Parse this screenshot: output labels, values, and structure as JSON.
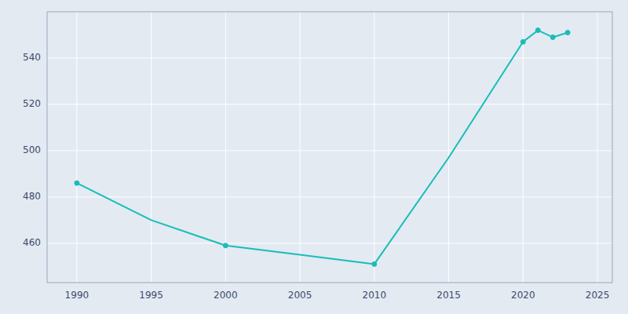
{
  "chart_data": {
    "type": "line",
    "x": [
      1990,
      1995,
      2000,
      2005,
      2010,
      2015,
      2020,
      2021,
      2022,
      2023
    ],
    "series": [
      {
        "color": "#18BDB8",
        "marker": "none",
        "line_style": "solid",
        "values": [
          486,
          470,
          459,
          455,
          451,
          497,
          547,
          552,
          549,
          551
        ]
      },
      {
        "color": "#18BDB8",
        "marker": "circle",
        "line_style": "none",
        "values": [
          486,
          null,
          459,
          null,
          451,
          null,
          547,
          552,
          549,
          551
        ]
      }
    ],
    "xlim": [
      1988,
      2026
    ],
    "ylim": [
      443,
      560
    ],
    "xticks": [
      1990,
      1995,
      2000,
      2005,
      2010,
      2015,
      2020,
      2025
    ],
    "yticks": [
      460,
      480,
      500,
      520,
      540
    ],
    "grid": true
  }
}
